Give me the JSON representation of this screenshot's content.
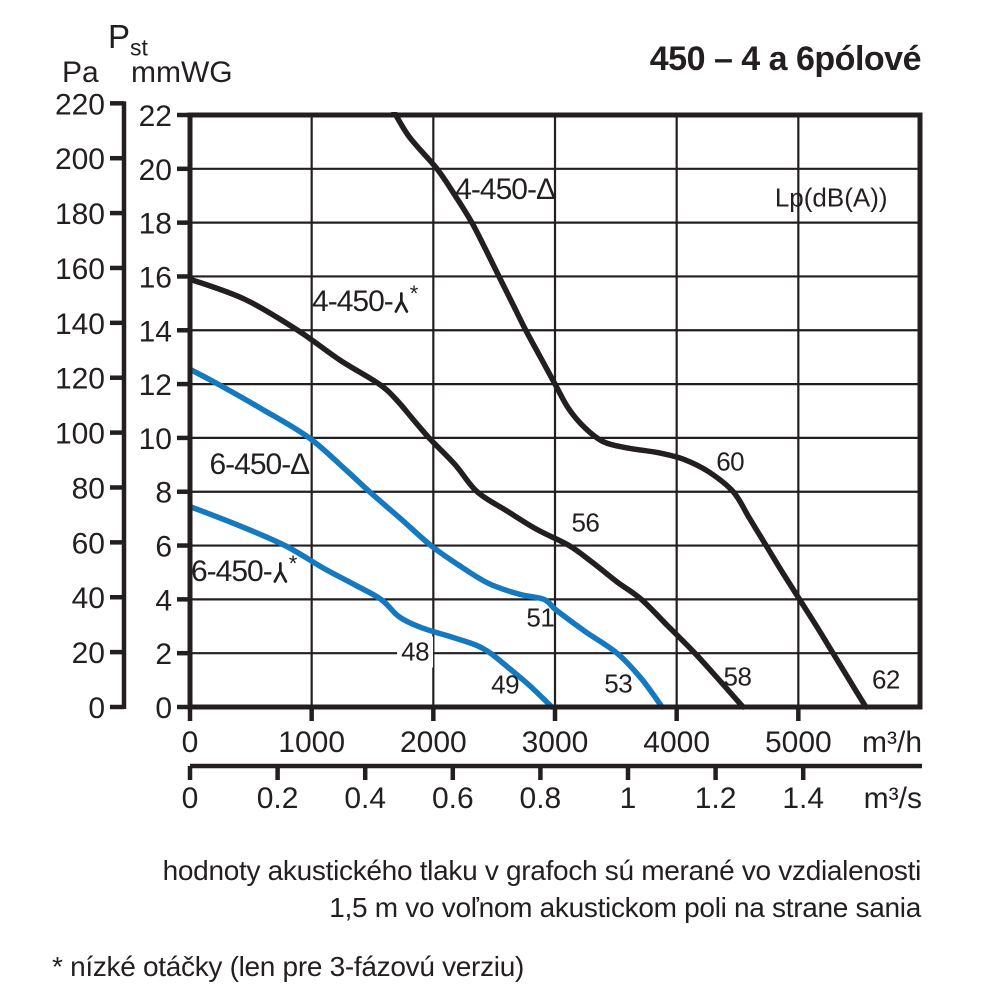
{
  "title": "450 – 4 a 6pólové",
  "header": {
    "quantity_main": "P",
    "quantity_sub": "st",
    "pa_unit": "Pa",
    "mmwg_unit": "mmWG"
  },
  "footnotes": {
    "line1": "hodnoty akustického tlaku v grafoch sú merané vo vzdialenosti",
    "line2": "1,5 m vo voľnom akustickom poli na strane sania",
    "line3": "* nízké otáčky (len pre 3-fázovú verziu)"
  },
  "colors": {
    "ink": "#231f20",
    "blue": "#1579bf"
  },
  "chart_data": {
    "type": "line",
    "title": "450 – 4 a 6pólové",
    "grid": true,
    "x_axis_primary": {
      "unit": "m³/h",
      "ticks": [
        0,
        1000,
        2000,
        3000,
        4000,
        5000
      ],
      "range": [
        0,
        6000
      ]
    },
    "x_axis_secondary": {
      "unit": "m³/s",
      "ticks": [
        0,
        0.2,
        0.4,
        0.6,
        0.8,
        1,
        1.2,
        1.4
      ],
      "range": [
        0,
        1.667
      ]
    },
    "y_axis_primary": {
      "unit": "mmWG",
      "ticks": [
        0,
        2,
        4,
        6,
        8,
        10,
        12,
        14,
        16,
        18,
        20,
        22
      ],
      "range": [
        0,
        22
      ]
    },
    "y_axis_secondary": {
      "unit": "Pa",
      "quantity": "Pst",
      "ticks": [
        0,
        20,
        40,
        60,
        80,
        100,
        120,
        140,
        160,
        180,
        200,
        220
      ],
      "range": [
        0,
        220
      ],
      "pa_per_mmwg": 9.80665
    },
    "sound_label": "Lp(dB(A))",
    "sound_label_pos": [
      5270,
      18.9
    ],
    "symbols": {
      "delta": "Δ",
      "star": "*"
    },
    "series": [
      {
        "id": "4-450-delta",
        "name": "4-450-Δ",
        "label_prefix": "4-450-",
        "symbol": "delta",
        "low_speed_star": false,
        "color": "#231f20",
        "label_pos": [
          2590,
          19.2
        ],
        "points": [
          [
            1655,
            22.3
          ],
          [
            1800,
            21.2
          ],
          [
            2030,
            20
          ],
          [
            2180,
            19
          ],
          [
            2317,
            18
          ],
          [
            2430,
            17
          ],
          [
            2540,
            16
          ],
          [
            2650,
            15
          ],
          [
            2760,
            14
          ],
          [
            2880,
            13
          ],
          [
            3000,
            12
          ],
          [
            3110,
            11.1
          ],
          [
            3240,
            10.4
          ],
          [
            3400,
            9.85
          ],
          [
            3600,
            9.62
          ],
          [
            3850,
            9.45
          ],
          [
            4060,
            9.2
          ],
          [
            4260,
            8.75
          ],
          [
            4465,
            8
          ],
          [
            4600,
            7
          ],
          [
            4735,
            6
          ],
          [
            4870,
            5
          ],
          [
            5010,
            4
          ],
          [
            5150,
            3
          ],
          [
            5285,
            2
          ],
          [
            5420,
            1
          ],
          [
            5555,
            0
          ]
        ]
      },
      {
        "id": "4-450-wye",
        "name": "4-450-Y*",
        "label_prefix": "4-450-",
        "symbol": "wye",
        "low_speed_star": true,
        "color": "#231f20",
        "label_pos": [
          1440,
          15.05
        ],
        "points": [
          [
            0,
            15.9
          ],
          [
            450,
            15.15
          ],
          [
            885,
            14
          ],
          [
            1230,
            12.9
          ],
          [
            1555,
            12
          ],
          [
            1700,
            11.4
          ],
          [
            1850,
            10.6
          ],
          [
            1975,
            9.95
          ],
          [
            2180,
            9
          ],
          [
            2360,
            8
          ],
          [
            2600,
            7.3
          ],
          [
            2850,
            6.6
          ],
          [
            3115,
            6
          ],
          [
            3300,
            5.4
          ],
          [
            3510,
            4.65
          ],
          [
            3710,
            4
          ],
          [
            3930,
            3
          ],
          [
            4150,
            2
          ],
          [
            4350,
            1
          ],
          [
            4545,
            0
          ]
        ]
      },
      {
        "id": "6-450-delta",
        "name": "6-450-Δ",
        "label_prefix": "6-450-",
        "symbol": "delta",
        "low_speed_star": false,
        "color": "#1579bf",
        "label_pos": [
          570,
          9.0
        ],
        "points": [
          [
            0,
            12.55
          ],
          [
            230,
            12
          ],
          [
            600,
            11.05
          ],
          [
            980,
            10
          ],
          [
            1295,
            8.75
          ],
          [
            1475,
            8
          ],
          [
            1730,
            7
          ],
          [
            1980,
            6
          ],
          [
            2200,
            5.3
          ],
          [
            2450,
            4.6
          ],
          [
            2700,
            4.2
          ],
          [
            2910,
            4
          ],
          [
            3010,
            3.6
          ],
          [
            3250,
            2.8
          ],
          [
            3510,
            2
          ],
          [
            3710,
            1.05
          ],
          [
            3880,
            0
          ]
        ]
      },
      {
        "id": "6-450-wye",
        "name": "6-450-Y*",
        "label_prefix": "6-450-",
        "symbol": "wye",
        "low_speed_star": true,
        "color": "#1579bf",
        "label_pos": [
          445,
          5.0
        ],
        "points": [
          [
            0,
            7.45
          ],
          [
            400,
            6.75
          ],
          [
            780,
            6
          ],
          [
            1100,
            5.15
          ],
          [
            1350,
            4.55
          ],
          [
            1570,
            4
          ],
          [
            1720,
            3.35
          ],
          [
            1900,
            2.95
          ],
          [
            2150,
            2.6
          ],
          [
            2350,
            2.3
          ],
          [
            2470,
            2
          ],
          [
            2620,
            1.45
          ],
          [
            2790,
            0.8
          ],
          [
            2975,
            0
          ]
        ]
      }
    ],
    "sound_levels": [
      {
        "value": "60",
        "pos": [
          4440,
          9.1
        ],
        "on_gridline": false
      },
      {
        "value": "56",
        "pos": [
          3250,
          6.85
        ],
        "on_gridline": false
      },
      {
        "value": "51",
        "pos": [
          2880,
          3.3
        ],
        "on_gridline": false
      },
      {
        "value": "48",
        "pos": [
          1850,
          2.05
        ],
        "on_gridline": true
      },
      {
        "value": "49",
        "pos": [
          2590,
          0.8
        ],
        "on_gridline": false
      },
      {
        "value": "53",
        "pos": [
          3520,
          0.85
        ],
        "on_gridline": false
      },
      {
        "value": "58",
        "pos": [
          4500,
          1.1
        ],
        "on_gridline": false
      },
      {
        "value": "62",
        "pos": [
          5720,
          1.0
        ],
        "on_gridline": false
      }
    ]
  }
}
